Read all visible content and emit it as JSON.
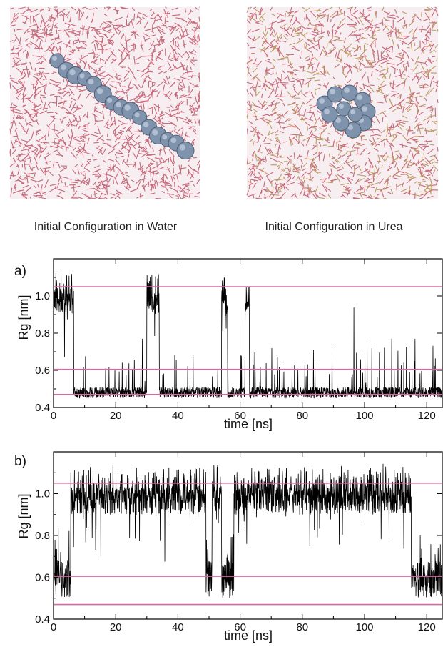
{
  "images": {
    "left_caption": "Initial Configuration in Water",
    "right_caption": "Initial Configuration in Urea",
    "water_color": "#c25a6e",
    "urea_color": "#b8945a",
    "solute_color": "#7f93ad"
  },
  "colors": {
    "reference_line": "#d36aa3",
    "trace": "#000000"
  },
  "chart_data": [
    {
      "type": "line",
      "panel_label": "a)",
      "xlabel": "time  [ns]",
      "ylabel": "Rg  [nm]",
      "xlim": [
        0,
        125
      ],
      "ylim": [
        0.4,
        1.2
      ],
      "xticks": [
        0,
        20,
        40,
        60,
        80,
        100,
        120
      ],
      "yticks": [
        0.4,
        0.6,
        0.8,
        1.0
      ],
      "ytick_labels": [
        "0.4",
        "0.6",
        "0.8",
        "1.0"
      ],
      "reference_lines": [
        1.05,
        0.605,
        0.47
      ],
      "segments": [
        [
          0,
          6.5,
          "high"
        ],
        [
          6.5,
          30,
          "low"
        ],
        [
          30,
          34,
          "high"
        ],
        [
          34,
          54,
          "low"
        ],
        [
          54,
          56,
          "high"
        ],
        [
          56,
          61.5,
          "low"
        ],
        [
          61.5,
          63,
          "high"
        ],
        [
          63,
          125,
          "low"
        ]
      ]
    },
    {
      "type": "line",
      "panel_label": "b)",
      "xlabel": "time  [ns]",
      "ylabel": "Rg  [nm]",
      "xlim": [
        0,
        125
      ],
      "ylim": [
        0.4,
        1.2
      ],
      "xticks": [
        0,
        20,
        40,
        60,
        80,
        100,
        120
      ],
      "yticks": [
        0.4,
        0.6,
        0.8,
        1.0
      ],
      "ytick_labels": [
        "0.4",
        "0.6",
        "0.8",
        "1.0"
      ],
      "reference_lines": [
        1.05,
        0.605,
        0.47
      ],
      "segments": [
        [
          0,
          5.5,
          "mid"
        ],
        [
          5.5,
          49,
          "high"
        ],
        [
          49,
          51,
          "mid"
        ],
        [
          51,
          54,
          "high"
        ],
        [
          54,
          58,
          "mid"
        ],
        [
          58,
          115,
          "high"
        ],
        [
          115,
          125,
          "mid"
        ]
      ]
    }
  ]
}
